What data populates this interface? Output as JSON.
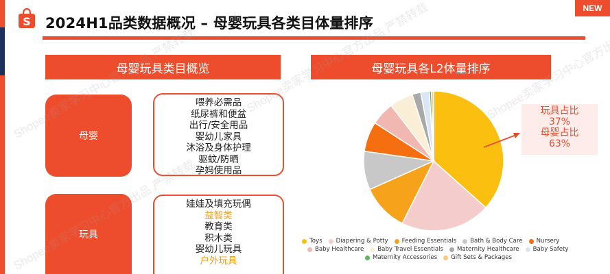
{
  "slide": {
    "title": "2024H1品类数据概况 – 母婴玩具各类目体量排序",
    "badge": "NEW",
    "colors": {
      "accent": "#ee4d2d",
      "navy": "#1c2f5e",
      "highlight": "#f39c12"
    }
  },
  "left_panel": {
    "header": "母婴玩具类目概览",
    "categories": [
      {
        "label": "母婴",
        "items": [
          {
            "text": "喂养必需品",
            "highlight": false
          },
          {
            "text": "纸尿裤和便盆",
            "highlight": false
          },
          {
            "text": "出行/安全用品",
            "highlight": false
          },
          {
            "text": "婴幼儿家具",
            "highlight": false
          },
          {
            "text": "沐浴及身体护理",
            "highlight": false
          },
          {
            "text": "驱蚊/防晒",
            "highlight": false
          },
          {
            "text": "孕妈使用品",
            "highlight": false
          }
        ]
      },
      {
        "label": "玩具",
        "items": [
          {
            "text": "娃娃及填充玩偶",
            "highlight": false
          },
          {
            "text": "益智类",
            "highlight": true
          },
          {
            "text": "教育类",
            "highlight": false
          },
          {
            "text": "积木类",
            "highlight": false
          },
          {
            "text": "婴幼儿玩具",
            "highlight": false
          },
          {
            "text": "户外玩具",
            "highlight": true
          }
        ]
      }
    ]
  },
  "right_panel": {
    "header": "母婴玩具各L2体量排序",
    "share_lines": [
      "玩具占比",
      "37%",
      "母婴占比",
      "63%"
    ]
  },
  "chart_data": {
    "type": "pie",
    "title": "",
    "series": [
      {
        "name": "Toys",
        "value": 37,
        "color": "#fbbf0f"
      },
      {
        "name": "Diapering & Potty",
        "value": 21,
        "color": "#f5cccc"
      },
      {
        "name": "Feeding Essentials",
        "value": 11,
        "color": "#f7a21b"
      },
      {
        "name": "Bath & Body Care",
        "value": 9,
        "color": "#c8c8c8"
      },
      {
        "name": "Nursery",
        "value": 7,
        "color": "#f56e0f"
      },
      {
        "name": "Baby Healthcare",
        "value": 5.5,
        "color": "#f1b8b2"
      },
      {
        "name": "Baby Travel Essentials",
        "value": 5.5,
        "color": "#fbeed7"
      },
      {
        "name": "Maternity Healthcare",
        "value": 2,
        "color": "#a9a9a9"
      },
      {
        "name": "Baby Safety",
        "value": 2,
        "color": "#d9e6f5"
      },
      {
        "name": "Maternity Accessories",
        "value": 0.5,
        "color": "#5cb85c"
      },
      {
        "name": "Gift Sets & Packages",
        "value": 0.5,
        "color": "#f9c97e"
      }
    ],
    "legend_position": "bottom"
  },
  "watermarks": [
    "Shopee卖家学习中心官方出品 严禁转载",
    "Shopee卖家学习中心官方出品 严禁转载",
    "Shopee卖家学习中心官方出品 严禁转载",
    "Shopee卖家学习中心官方出品 严禁转载"
  ]
}
